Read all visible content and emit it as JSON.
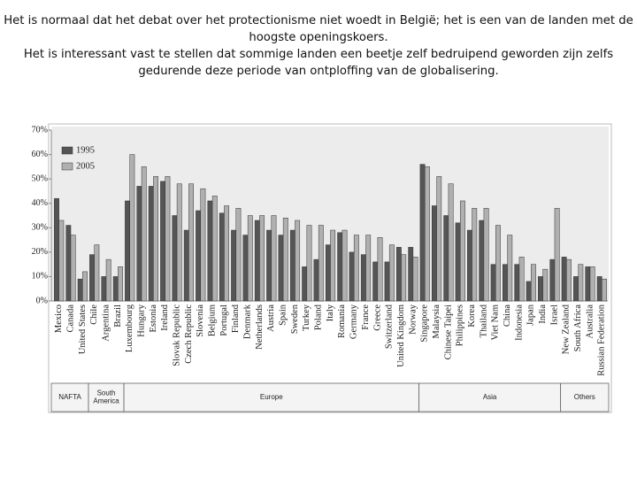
{
  "paragraphs": [
    "Het is normaal dat het debat over het protectionisme niet woedt in België; het is een van de landen met de hoogste openingskoers.",
    "Het is interessant vast te stellen dat sommige landen een beetje zelf bedruipend geworden zijn zelfs gedurende deze periode van ontploffing van de globalisering."
  ],
  "chart_data": {
    "type": "bar",
    "categories": [
      "Mexico",
      "Canada",
      "United States",
      "Chile",
      "Argentina",
      "Brazil",
      "Luxembourg",
      "Hungary",
      "Estonia",
      "Ireland",
      "Slovak Republic",
      "Czech Republic",
      "Slovenia",
      "Belgium",
      "Portugal",
      "Finland",
      "Denmark",
      "Netherlands",
      "Austria",
      "Spain",
      "Sweden",
      "Turkey",
      "Poland",
      "Italy",
      "Romania",
      "Germany",
      "France",
      "Greece",
      "Switzerland",
      "United Kingdom",
      "Norway",
      "Singapore",
      "Malaysia",
      "Chinese Taipei",
      "Philippines",
      "Korea",
      "Thailand",
      "Viet Nam",
      "China",
      "Indonesia",
      "Japan",
      "India",
      "Israel",
      "New Zealand",
      "South Africa",
      "Australia",
      "Russian Federation"
    ],
    "series": [
      {
        "name": "1995",
        "color": "#555555",
        "values": [
          42,
          31,
          9,
          19,
          10,
          10,
          41,
          47,
          47,
          49,
          35,
          29,
          37,
          41,
          36,
          29,
          27,
          33,
          29,
          27,
          29,
          14,
          17,
          23,
          28,
          20,
          19,
          16,
          16,
          22,
          22,
          56,
          39,
          35,
          32,
          29,
          33,
          15,
          15,
          15,
          8,
          10,
          17,
          18,
          10,
          14,
          10
        ]
      },
      {
        "name": "2005",
        "color": "#b0b0b0",
        "values": [
          33,
          27,
          12,
          23,
          17,
          14,
          60,
          55,
          51,
          51,
          48,
          48,
          46,
          43,
          39,
          38,
          35,
          35,
          35,
          34,
          33,
          31,
          31,
          29,
          29,
          27,
          27,
          26,
          23,
          19,
          18,
          55,
          51,
          48,
          41,
          38,
          38,
          31,
          27,
          18,
          15,
          13,
          38,
          17,
          15,
          14,
          9
        ]
      }
    ],
    "ylim": [
      0,
      70
    ],
    "yticks": [
      {
        "value": 0,
        "label": "0%"
      },
      {
        "value": 10,
        "label": "10%"
      },
      {
        "value": 20,
        "label": "20%"
      },
      {
        "value": 30,
        "label": "30%"
      },
      {
        "value": 40,
        "label": "40%"
      },
      {
        "value": 50,
        "label": "50%"
      },
      {
        "value": 60,
        "label": "60%"
      },
      {
        "value": 70,
        "label": "70%"
      }
    ],
    "grid": false,
    "legend": "upper left",
    "groups": [
      {
        "label": "NAFTA",
        "members": [
          "Mexico",
          "United States"
        ]
      },
      {
        "label": "South America",
        "members": [
          "Chile",
          "Brazil"
        ]
      },
      {
        "label": "Europe",
        "members": [
          "Luxembourg",
          "Norway"
        ]
      },
      {
        "label": "Asia",
        "members": [
          "Singapore",
          "Israel"
        ]
      },
      {
        "label": "Others",
        "members": [
          "New Zealand",
          "Russian Federation"
        ]
      }
    ]
  }
}
